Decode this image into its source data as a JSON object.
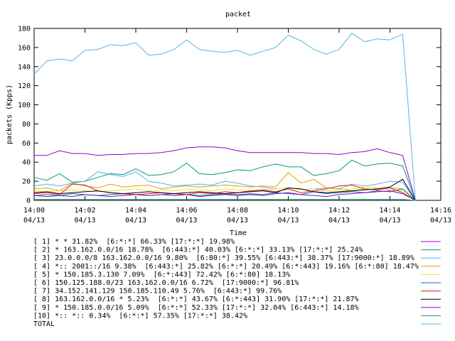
{
  "chart_data": {
    "type": "line",
    "title": "packet",
    "x_label": "Time",
    "y_label": "packets (Kpps)",
    "xlim": [
      "14:00:00",
      "14:16:00"
    ],
    "xticks": [
      {
        "value": "14:00:00",
        "label": [
          "14:00",
          "04/13"
        ]
      },
      {
        "value": "14:02:00",
        "label": [
          "14:02",
          "04/13"
        ]
      },
      {
        "value": "14:04:00",
        "label": [
          "14:04",
          "04/13"
        ]
      },
      {
        "value": "14:06:00",
        "label": [
          "14:06",
          "04/13"
        ]
      },
      {
        "value": "14:08:00",
        "label": [
          "14:08",
          "04/13"
        ]
      },
      {
        "value": "14:10:00",
        "label": [
          "14:10",
          "04/13"
        ]
      },
      {
        "value": "14:12:00",
        "label": [
          "14:12",
          "04/13"
        ]
      },
      {
        "value": "14:14:00",
        "label": [
          "14:14",
          "04/13"
        ]
      },
      {
        "value": "14:16:00",
        "label": [
          "14:16",
          "04/13"
        ]
      }
    ],
    "ylim": [
      0,
      180
    ],
    "yticks": [
      0,
      20,
      40,
      60,
      80,
      100,
      120,
      140,
      160,
      180
    ],
    "x": [
      "14:00:00",
      "14:00:30",
      "14:01:00",
      "14:01:30",
      "14:02:00",
      "14:02:30",
      "14:03:00",
      "14:03:30",
      "14:04:00",
      "14:04:30",
      "14:05:00",
      "14:05:30",
      "14:06:00",
      "14:06:30",
      "14:07:00",
      "14:07:30",
      "14:08:00",
      "14:08:30",
      "14:09:00",
      "14:09:30",
      "14:10:00",
      "14:10:30",
      "14:11:00",
      "14:11:30",
      "14:12:00",
      "14:12:30",
      "14:13:00",
      "14:13:30",
      "14:14:00",
      "14:14:30",
      "14:15:00"
    ],
    "series": [
      {
        "name": "[ 1] * * 31.82%  [6:*:*] 66.33% [17:*:*] 19.98%",
        "color": "#9400d3",
        "values": [
          47,
          47,
          52,
          49,
          49,
          47,
          48,
          48,
          49,
          49,
          50,
          52,
          55,
          56,
          56,
          55,
          52,
          50,
          50,
          50,
          50,
          50,
          49,
          49,
          48,
          50,
          51,
          54,
          50,
          47,
          0
        ]
      },
      {
        "name": "[ 2] * 163.162.0.0/16 18.78%  [6:443:*] 40.03% [6:*:*] 33.13% [17:*:*] 25.24%",
        "color": "#009e73",
        "values": [
          24,
          21,
          28,
          19,
          20,
          24,
          28,
          27,
          33,
          26,
          27,
          30,
          39,
          28,
          27,
          29,
          32,
          31,
          35,
          38,
          35,
          35,
          26,
          28,
          31,
          42,
          36,
          38,
          39,
          36,
          0
        ]
      },
      {
        "name": "[ 3] 23.0.0.0/8 163.162.0.0/16 9.80%  [6:80:*] 39.55% [6:443:*] 38.37% [17:9000:*] 18.89%",
        "color": "#56b4e9",
        "values": [
          15,
          17,
          15,
          18,
          20,
          30,
          27,
          25,
          30,
          20,
          18,
          15,
          16,
          17,
          16,
          20,
          18,
          15,
          14,
          12,
          13,
          11,
          12,
          13,
          12,
          17,
          15,
          17,
          20,
          19,
          0
        ]
      },
      {
        "name": "[ 4] *:: 2001::/16 9.38%  [6:443:*] 25.82% [6:*:*] 20.49% [6:*:443] 19.16% [6:*:80] 18.47%",
        "color": "#e69f00",
        "values": [
          12,
          13,
          10,
          18,
          15,
          13,
          17,
          14,
          15,
          16,
          12,
          14,
          15,
          14,
          15,
          16,
          15,
          14,
          15,
          14,
          29,
          18,
          22,
          13,
          12,
          10,
          12,
          11,
          13,
          12,
          0
        ]
      },
      {
        "name": "[ 5] * 150.185.3.130 7.09%  [6:*:443] 72.42% [6:*:80] 18.13%",
        "color": "#f0e442",
        "values": [
          10,
          9,
          10,
          11,
          10,
          9,
          10,
          11,
          12,
          10,
          11,
          10,
          12,
          11,
          10,
          12,
          11,
          10,
          11,
          12,
          13,
          11,
          12,
          10,
          11,
          12,
          14,
          13,
          11,
          10,
          0
        ]
      },
      {
        "name": "[ 6] 150.125.188.0/23 163.162.0.0/16 6.72%  [17:9000:*] 96.81%",
        "color": "#0072b2",
        "values": [
          5,
          6,
          5,
          7,
          6,
          5,
          6,
          7,
          6,
          5,
          6,
          7,
          6,
          5,
          6,
          7,
          6,
          7,
          6,
          8,
          7,
          6,
          9,
          7,
          8,
          9,
          8,
          10,
          9,
          12,
          0
        ]
      },
      {
        "name": "[ 7] 34.152.141.129 150.185.110.49 5.76%  [6:443:*] 99.76%",
        "color": "#e51e10",
        "values": [
          7,
          8,
          6,
          17,
          16,
          10,
          8,
          7,
          6,
          7,
          8,
          7,
          6,
          8,
          7,
          9,
          8,
          10,
          11,
          9,
          12,
          8,
          10,
          12,
          15,
          16,
          12,
          11,
          13,
          8,
          0
        ]
      },
      {
        "name": "[ 8] 163.162.0.0/16 * 5.23%  [6:*:*] 43.67% [6:*:443] 31.90% [17:*:*] 21.87%",
        "color": "#000000",
        "values": [
          8,
          9,
          7,
          8,
          9,
          10,
          8,
          7,
          8,
          9,
          8,
          7,
          8,
          9,
          8,
          7,
          8,
          9,
          10,
          8,
          13,
          12,
          9,
          8,
          9,
          10,
          11,
          12,
          14,
          22,
          0
        ]
      },
      {
        "name": "[ 9] * 150.185.0.0/16 5.09%  [6:*:*] 52.33% [17:*:*] 32.04% [6:443:*] 14.18%",
        "color": "#9400d3",
        "values": [
          5,
          4,
          5,
          4,
          6,
          5,
          4,
          5,
          6,
          5,
          6,
          5,
          6,
          4,
          5,
          6,
          5,
          6,
          5,
          7,
          8,
          6,
          5,
          4,
          6,
          7,
          8,
          9,
          10,
          7,
          0
        ]
      },
      {
        "name": "[10] *:: *:: 0.34%  [6:*:*] 57.35% [17:*:*] 38.42%",
        "color": "#009e73",
        "values": [
          1,
          1,
          1,
          1,
          1,
          1,
          1,
          1,
          1,
          1,
          1,
          1,
          1,
          1,
          1,
          1,
          1,
          1,
          1,
          1,
          1,
          1,
          1,
          1,
          1,
          1,
          1,
          1,
          1,
          1,
          0
        ]
      },
      {
        "name": "TOTAL",
        "color": "#56b4e9",
        "values": [
          132,
          146,
          148,
          146,
          157,
          158,
          163,
          162,
          165,
          152,
          153,
          158,
          168,
          158,
          156,
          155,
          157,
          152,
          156,
          160,
          173,
          167,
          158,
          153,
          158,
          175,
          166,
          169,
          168,
          174,
          0
        ]
      }
    ]
  }
}
